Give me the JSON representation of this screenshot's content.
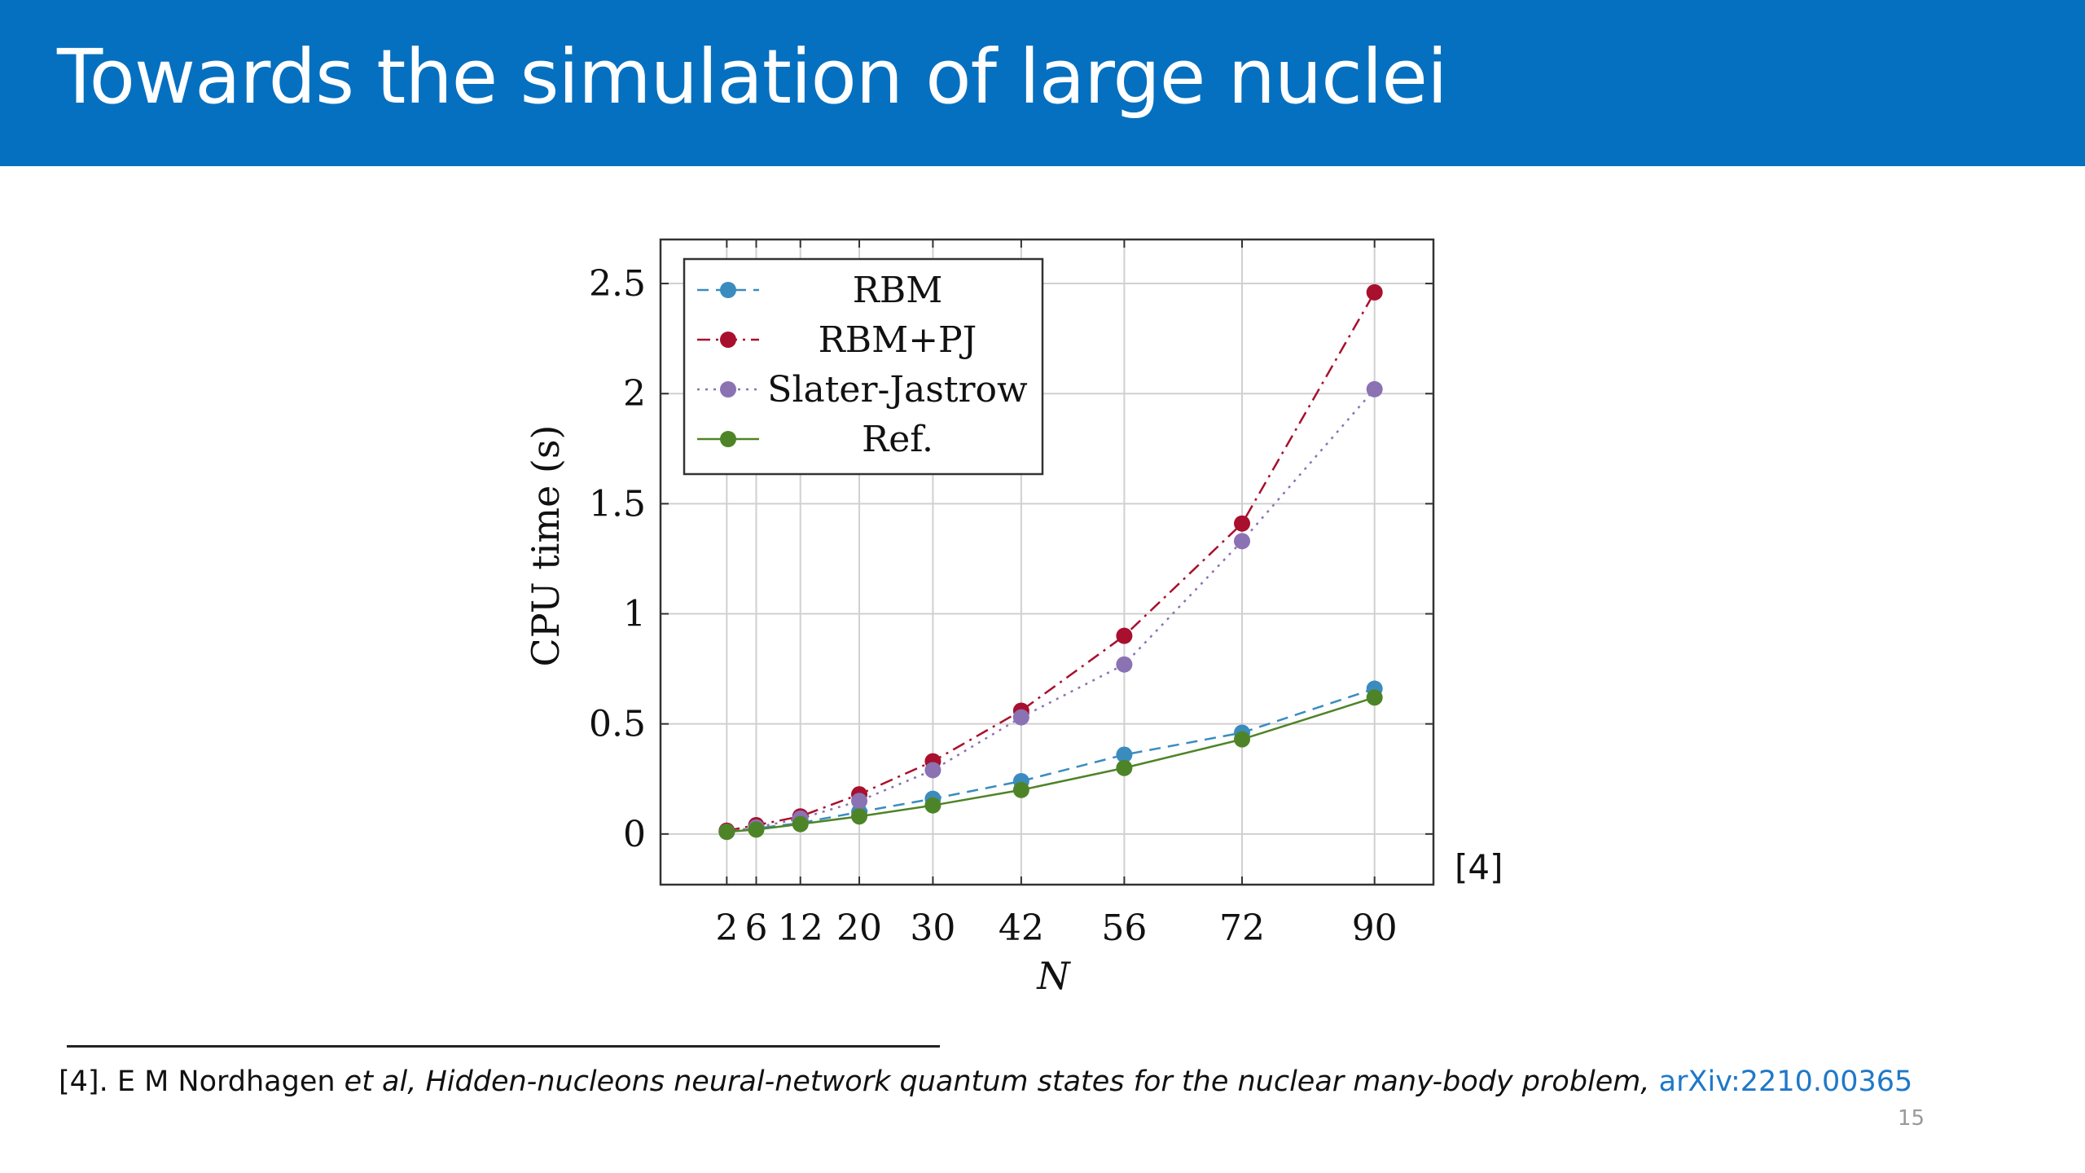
{
  "slide": {
    "title": "Towards the simulation of large nuclei",
    "reference_tag": "[4]",
    "page_number": "15",
    "footnote": {
      "prefix": "[4]. E M Nordhagen ",
      "etal": "et al,",
      "paper_title": " Hidden-nucleons neural-network quantum states for the nuclear many-body problem,",
      "link_text": " arXiv:2210.00365"
    }
  },
  "chart_data": {
    "type": "line",
    "xlabel": "N",
    "ylabel": "CPU time (s)",
    "x": [
      2,
      6,
      12,
      20,
      30,
      42,
      56,
      72,
      90
    ],
    "x_tick_labels": [
      "2",
      "6",
      "12",
      "20",
      "30",
      "42",
      "56",
      "72",
      "90"
    ],
    "y_ticks": [
      0,
      0.5,
      1,
      1.5,
      2,
      2.5
    ],
    "y_tick_labels": [
      "0",
      "0.5",
      "1",
      "1.5",
      "2",
      "2.5"
    ],
    "xlim": [
      -7,
      98
    ],
    "ylim": [
      -0.23,
      2.7
    ],
    "grid": true,
    "legend_position": "top-left",
    "series": [
      {
        "name": "RBM",
        "color": "#3a8cbf",
        "dash": "dashed",
        "values": [
          0.01,
          0.025,
          0.05,
          0.1,
          0.16,
          0.24,
          0.36,
          0.46,
          0.66
        ]
      },
      {
        "name": "RBM+PJ",
        "color": "#a8102e",
        "dash": "dashdot",
        "values": [
          0.015,
          0.04,
          0.08,
          0.18,
          0.33,
          0.56,
          0.9,
          1.41,
          2.46
        ]
      },
      {
        "name": "Slater-Jastrow",
        "color": "#8a72b3",
        "dash": "dotted",
        "values": [
          0.01,
          0.03,
          0.07,
          0.15,
          0.29,
          0.53,
          0.77,
          1.33,
          2.02
        ]
      },
      {
        "name": "Ref.",
        "color": "#4e8428",
        "dash": "solid",
        "values": [
          0.01,
          0.02,
          0.045,
          0.08,
          0.13,
          0.2,
          0.3,
          0.43,
          0.62
        ]
      }
    ]
  }
}
